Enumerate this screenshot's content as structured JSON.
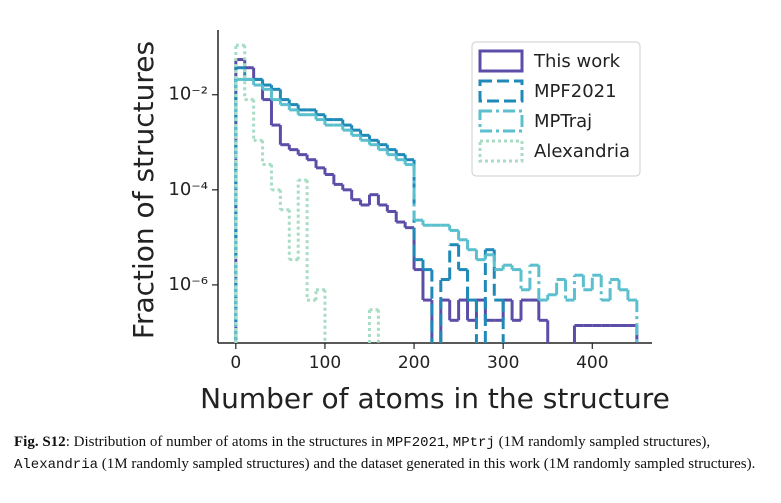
{
  "chart_data": {
    "type": "step-histogram",
    "xlabel": "Number of atoms in the structure",
    "ylabel": "Fraction of structures",
    "log_y": true,
    "xlim": [
      -20,
      467
    ],
    "ylim": [
      6e-08,
      0.23
    ],
    "xticks": [
      0,
      100,
      200,
      300,
      400
    ],
    "yticks": [
      {
        "value": 0.01,
        "label": "10⁻²"
      },
      {
        "value": 0.0001,
        "label": "10⁻⁴"
      },
      {
        "value": 1e-06,
        "label": "10⁻⁶"
      }
    ],
    "legend": "upper right",
    "bins": [
      0,
      10,
      20,
      30,
      40,
      50,
      60,
      70,
      80,
      90,
      100,
      110,
      120,
      130,
      140,
      150,
      160,
      170,
      180,
      190,
      200,
      210,
      220,
      230,
      240,
      250,
      260,
      270,
      280,
      290,
      300,
      310,
      320,
      330,
      340,
      350,
      360,
      370,
      380,
      390,
      400,
      410,
      420,
      430,
      440,
      450
    ],
    "series": [
      {
        "name": "This work",
        "color": "#5b4ea8",
        "linestyle": "solid",
        "values": [
          0.055,
          0.037,
          0.021,
          0.0079,
          0.0023,
          0.00089,
          0.0007,
          0.00055,
          0.00043,
          0.00029,
          0.00021,
          0.00013,
          0.0001,
          6.2e-05,
          4.8e-05,
          7.9e-05,
          4.8e-05,
          3.5e-05,
          2.1e-05,
          1.6e-05,
          2.1e-06,
          4.8e-07,
          null,
          4.8e-07,
          1.8e-07,
          4.8e-07,
          1.8e-07,
          4.8e-07,
          1.8e-07,
          1.8e-07,
          4.8e-07,
          1.8e-07,
          4.8e-07,
          4.8e-07,
          1.8e-07,
          null,
          null,
          null,
          1.4e-07,
          1.4e-07,
          1.4e-07,
          1.4e-07,
          1.4e-07,
          1.4e-07,
          1.4e-07
        ]
      },
      {
        "name": "MPF2021",
        "color": "#1f8ab8",
        "linestyle": "dashed",
        "values": [
          0.037,
          0.021,
          0.021,
          0.016,
          0.013,
          0.0079,
          0.0062,
          0.0048,
          0.0048,
          0.0038,
          0.003,
          0.003,
          0.0023,
          0.0018,
          0.0014,
          0.0011,
          0.00089,
          0.0007,
          0.00055,
          0.00043,
          3.4e-06,
          2.1e-06,
          null,
          1.3e-06,
          7e-06,
          2.1e-06,
          4.8e-07,
          null,
          5.5e-06,
          4.8e-07,
          null,
          null,
          null,
          null,
          null,
          null,
          null,
          null,
          null,
          null,
          null,
          null,
          null,
          null,
          null
        ]
      },
      {
        "name": "MPTraj",
        "color": "#5bbfce",
        "linestyle": "dashdot",
        "values": [
          0.021,
          0.021,
          0.016,
          0.013,
          0.0079,
          0.0062,
          0.0048,
          0.0038,
          0.0038,
          0.003,
          0.0023,
          0.0023,
          0.0018,
          0.0014,
          0.0011,
          0.00089,
          0.0007,
          0.00055,
          0.00043,
          0.00034,
          2.3e-05,
          1.8e-05,
          1.8e-05,
          1.8e-05,
          1.4e-05,
          8.9e-06,
          5.5e-06,
          3.4e-06,
          4.3e-06,
          2.1e-06,
          2.6e-06,
          2.1e-06,
          7.9e-07,
          2.6e-06,
          4.8e-07,
          6.2e-07,
          1.3e-06,
          4.8e-07,
          1.6e-06,
          7.9e-07,
          1.6e-06,
          4.8e-07,
          1.3e-06,
          7.9e-07,
          4.8e-07
        ]
      },
      {
        "name": "Alexandria",
        "color": "#a8dcc4",
        "linestyle": "dotted",
        "values": [
          0.11,
          0.0079,
          0.0011,
          0.00034,
          0.0001,
          3.8e-05,
          3.4e-06,
          0.00016,
          4.8e-07,
          7.9e-07,
          null,
          null,
          null,
          null,
          null,
          3e-07,
          null,
          null,
          null,
          null,
          null,
          null,
          null,
          null,
          null,
          null,
          null,
          null,
          null,
          null,
          null,
          null,
          null,
          null,
          null,
          null,
          null,
          null,
          null,
          null,
          null,
          null,
          null,
          null,
          null
        ]
      }
    ]
  },
  "caption": [
    {
      "text": "Fig. S12",
      "font": "bold"
    },
    {
      "text": ": Distribution of number of atoms in the structures in ",
      "font": "plain"
    },
    {
      "text": "MPF2021",
      "font": "mono"
    },
    {
      "text": ", ",
      "font": "plain"
    },
    {
      "text": "MPtrj",
      "font": "mono"
    },
    {
      "text": " (1M randomly sampled structures), ",
      "font": "plain"
    },
    {
      "text": "Alexandria",
      "font": "mono"
    },
    {
      "text": " (1M randomly sampled structures) and the dataset generated in this work (1M randomly sampled structures).",
      "font": "plain"
    }
  ]
}
